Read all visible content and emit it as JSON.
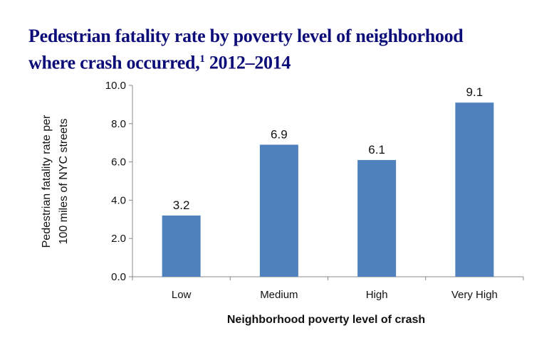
{
  "chart_data": {
    "type": "bar",
    "title_line1": "Pedestrian fatality rate by poverty level of neighborhood",
    "title_line2": "where crash occurred,",
    "title_footnote": "1",
    "title_years": "2012–2014",
    "categories": [
      "Low",
      "Medium",
      "High",
      "Very High"
    ],
    "values": [
      3.2,
      6.9,
      6.1,
      9.1
    ],
    "data_labels": [
      "3.2",
      "6.9",
      "6.1",
      "9.1"
    ],
    "xlabel": "Neighborhood poverty level of crash",
    "ylabel_line1": "Pedestrian fatality rate per",
    "ylabel_line2": "100 miles of NYC streets",
    "ylim": [
      0,
      10
    ],
    "yticks": [
      "0.0",
      "2.0",
      "4.0",
      "6.0",
      "8.0",
      "10.0"
    ],
    "grid": false,
    "bar_color": "#4f81bd",
    "title_color": "#0d0d7a"
  }
}
